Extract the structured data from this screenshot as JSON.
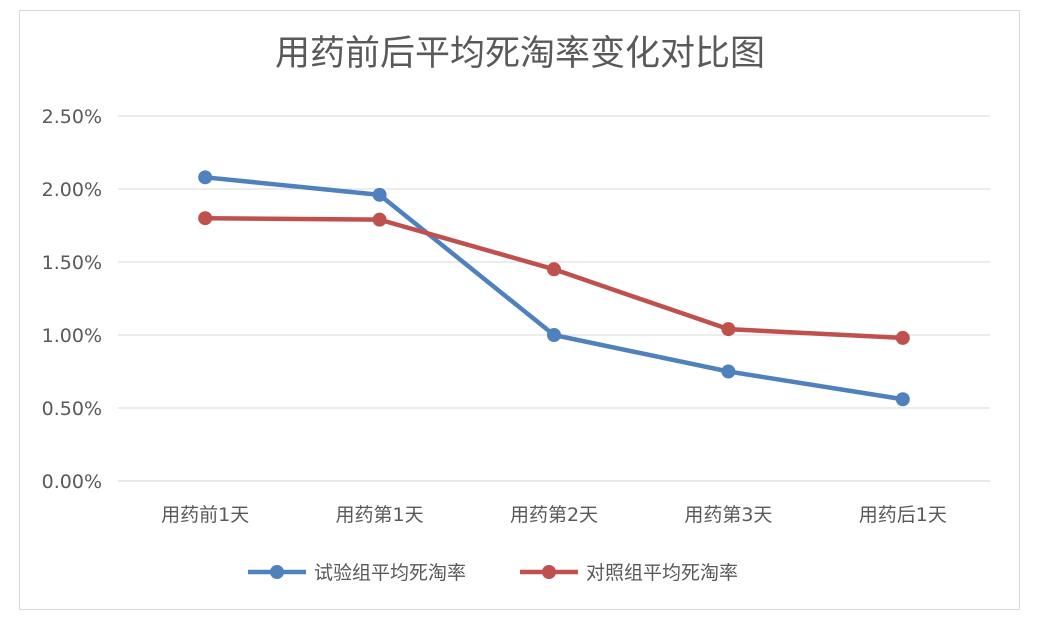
{
  "chart_data": {
    "type": "line",
    "title": "用药前后平均死淘率变化对比图",
    "categories": [
      "用药前1天",
      "用药第1天",
      "用药第2天",
      "用药第3天",
      "用药后1天"
    ],
    "series": [
      {
        "name": "试验组平均死淘率",
        "color": "#4f81bd",
        "values": [
          2.08,
          1.96,
          1.0,
          0.75,
          0.56
        ]
      },
      {
        "name": "对照组平均死淘率",
        "color": "#c0504d",
        "values": [
          1.8,
          1.79,
          1.45,
          1.04,
          0.98
        ]
      }
    ],
    "y_ticks": [
      "0.00%",
      "0.50%",
      "1.00%",
      "1.50%",
      "2.00%",
      "2.50%"
    ],
    "ylim": [
      0,
      2.5
    ],
    "y_unit": "%",
    "grid": true,
    "legend_position": "bottom"
  }
}
